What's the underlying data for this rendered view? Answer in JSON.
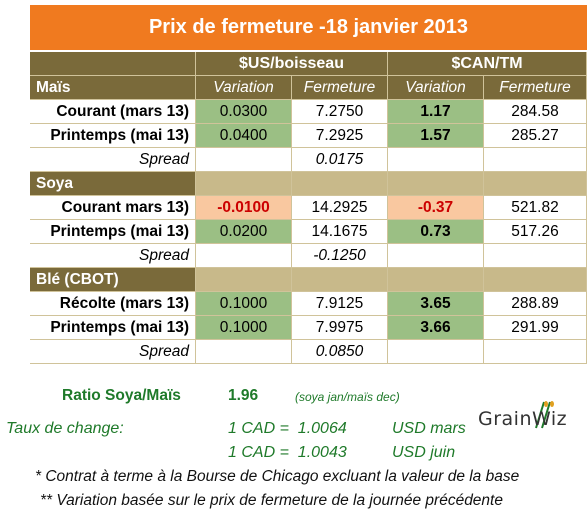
{
  "title": "Prix de fermeture -18 janvier 2013",
  "headers": {
    "usd": "$US/boisseau",
    "cad": "$CAN/TM",
    "variation": "Variation",
    "fermeture": "Fermeture"
  },
  "sections": [
    {
      "name": "Maïs",
      "rows": [
        {
          "label": "Courant (mars 13)",
          "usd_var": "0.0300",
          "usd_ferm": "7.2750",
          "cad_var": "1.17",
          "cad_ferm": "284.58",
          "trend": "up"
        },
        {
          "label": "Printemps (mai 13)",
          "usd_var": "0.0400",
          "usd_ferm": "7.2925",
          "cad_var": "1.57",
          "cad_ferm": "285.27",
          "trend": "up"
        }
      ],
      "spread_label": "Spread",
      "spread": "0.0175"
    },
    {
      "name": "Soya",
      "rows": [
        {
          "label": "Courant mars 13)",
          "usd_var": "-0.0100",
          "usd_ferm": "14.2925",
          "cad_var": "-0.37",
          "cad_ferm": "521.82",
          "trend": "down"
        },
        {
          "label": "Printemps (mai 13)",
          "usd_var": "0.0200",
          "usd_ferm": "14.1675",
          "cad_var": "0.73",
          "cad_ferm": "517.26",
          "trend": "up"
        }
      ],
      "spread_label": "Spread",
      "spread": "-0.1250"
    },
    {
      "name": "Blé (CBOT)",
      "rows": [
        {
          "label": "Récolte (mars 13)",
          "usd_var": "0.1000",
          "usd_ferm": "7.9125",
          "cad_var": "3.65",
          "cad_ferm": "288.89",
          "trend": "up"
        },
        {
          "label": "Printemps (mai 13)",
          "usd_var": "0.1000",
          "usd_ferm": "7.9975",
          "cad_var": "3.66",
          "cad_ferm": "291.99",
          "trend": "up"
        }
      ],
      "spread_label": "Spread",
      "spread": "0.0850"
    }
  ],
  "ratio": {
    "label": "Ratio Soya/Maïs",
    "value": "1.96",
    "note": "(soya jan/maïs dec)"
  },
  "fx": {
    "label": "Taux de change:",
    "line1": "1 CAD =  1.0064",
    "line1_unit": "USD mars",
    "line2": "1 CAD =  1.0043",
    "line2_unit": "USD juin"
  },
  "notes": [
    "* Contrat à terme à la Bourse de Chicago excluant la valeur de la base",
    "** Variation basée sur le prix de fermeture de la journée précédente"
  ],
  "logo": {
    "text": "GrainWiz",
    "icon": "grainwiz-logo"
  },
  "colors": {
    "title_bg": "#f07a1f",
    "header_bg": "#7a6a3a",
    "section_bg": "#c8b98a",
    "positive_bg": "#9bbf84",
    "negative_bg": "#f9c8a0",
    "negative_text": "#cc0000",
    "note_green": "#1f7a2a"
  }
}
